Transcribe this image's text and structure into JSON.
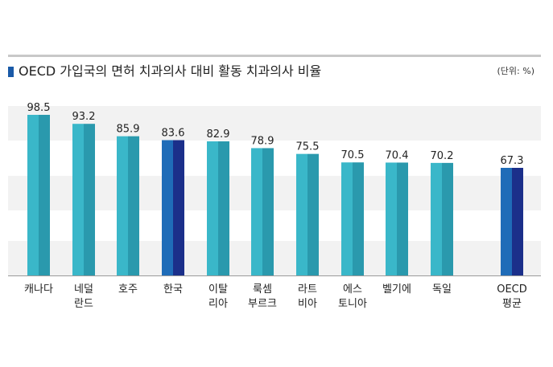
{
  "header": {
    "title": "OECD 가입국의 면허 치과의사 대비 활동 치과의사 비율",
    "unit": "(단위: %)"
  },
  "colors": {
    "teal_light": "#3ab7c9",
    "teal_dark": "#2a99ad",
    "navy_light": "#1f6cb8",
    "navy_dark": "#1b2f8a",
    "band": "#f2f2f2",
    "title_marker": "#1a5aa8"
  },
  "chart_data": {
    "type": "bar",
    "title": "OECD 가입국의 면허 치과의사 대비 활동 치과의사 비율",
    "ylabel": "",
    "xlabel": "",
    "ylim": [
      0,
      100
    ],
    "grid": "horizontal bands",
    "legend": "none",
    "categories": [
      [
        "캐나다"
      ],
      [
        "네덜",
        "란드"
      ],
      [
        "호주"
      ],
      [
        "한국"
      ],
      [
        "이탈",
        "리아"
      ],
      [
        "룩셈",
        "부르크"
      ],
      [
        "라트",
        "비아"
      ],
      [
        "에스",
        "토니아"
      ],
      [
        "벨기에"
      ],
      [
        "독일"
      ],
      [
        "OECD",
        "평균"
      ]
    ],
    "values": [
      98.5,
      93.2,
      85.9,
      83.6,
      82.9,
      78.9,
      75.5,
      70.5,
      70.4,
      70.2,
      67.3
    ],
    "value_labels": [
      "98.5",
      "93.2",
      "85.9",
      "83.6",
      "82.9",
      "78.9",
      "75.5",
      "70.5",
      "70.4",
      "70.2",
      "67.3"
    ],
    "highlighted": [
      "한국",
      "OECD 평균"
    ]
  }
}
